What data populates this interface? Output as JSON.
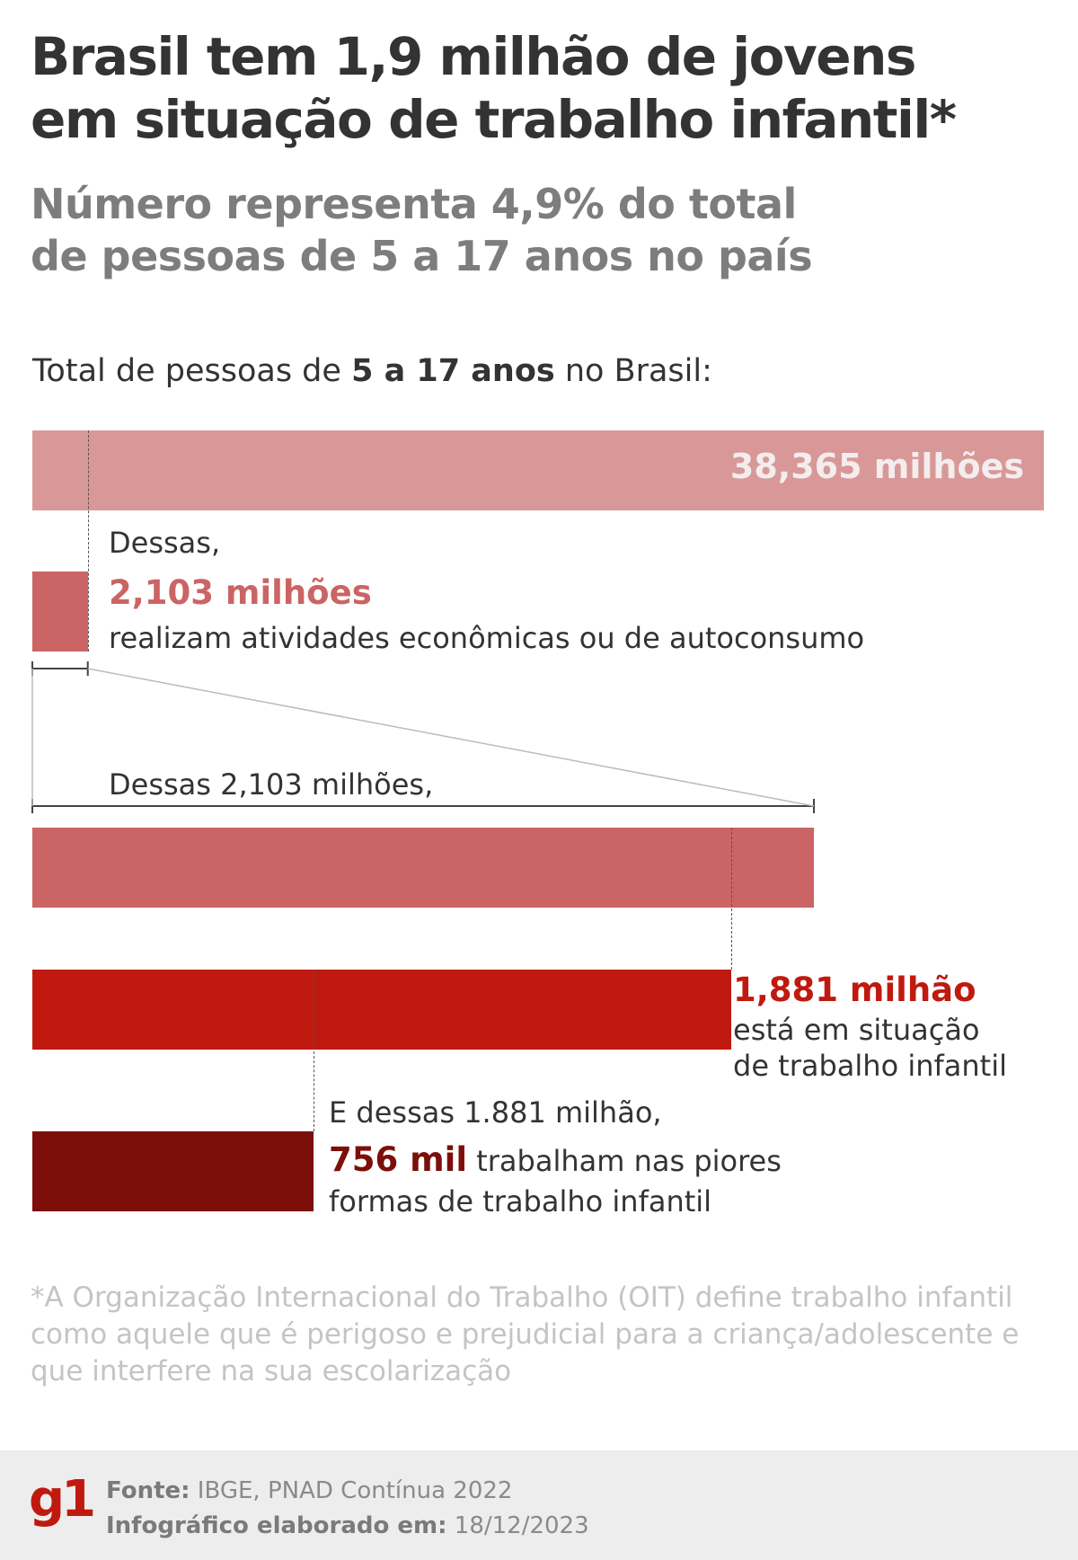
{
  "header": {
    "title_line1": "Brasil tem 1,9 milhão de jovens",
    "title_line2": "em situação de trabalho infantil*",
    "subtitle_line1": "Número representa 4,9% do total",
    "subtitle_line2": "de pessoas de 5 a 17 anos no país"
  },
  "intro": {
    "prefix": "Total de pessoas de ",
    "bold": "5 a 17 anos",
    "suffix": " no Brasil:"
  },
  "blocks": {
    "total_label": "38,365 milhões",
    "econ_lead": "Dessas,",
    "econ_value": "2,103 milhões",
    "econ_desc": "realizam atividades econômicas ou de autoconsumo",
    "zoom_lead": "Dessas 2,103 milhões,",
    "child_value": "1,881 milhão",
    "child_desc1": "está em situação",
    "child_desc2": "de trabalho infantil",
    "worst_lead": "E dessas 1.881 milhão,",
    "worst_value": "756 mil",
    "worst_desc1": " trabalham nas piores",
    "worst_desc2": "formas de trabalho infantil"
  },
  "chart_data": {
    "type": "bar",
    "unit": "milhões",
    "categories": [
      "Total 5 a 17 anos",
      "Atividades econômicas ou de autoconsumo",
      "Trabalho infantil",
      "Piores formas de trabalho infantil"
    ],
    "values": [
      38.365,
      2.103,
      1.881,
      0.756
    ],
    "colors": [
      "#d99898",
      "#cb6464",
      "#c0190f",
      "#7c0f0a"
    ]
  },
  "footnote": "*A Organização Internacional do Trabalho (OIT) define trabalho infantil como aquele que é perigoso e prejudicial para a criança/adolescente e que interfere na sua escolarização",
  "footer": {
    "logo": "g1",
    "source_label": "Fonte:",
    "source_value": " IBGE, PNAD Contínua 2022",
    "date_label": "Infográfico elaborado em:",
    "date_value": " 18/12/2023"
  }
}
